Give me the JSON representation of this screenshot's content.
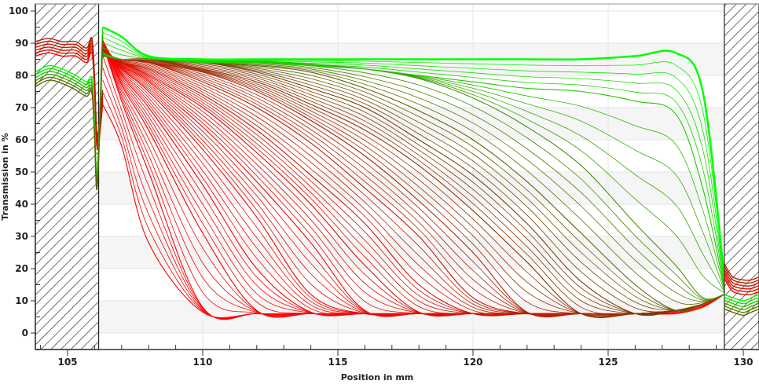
{
  "chart_data": {
    "type": "line",
    "xlabel": "Position in mm",
    "ylabel": "Transmission in %",
    "xlim": [
      103.8,
      130.6
    ],
    "ylim": [
      -5,
      102
    ],
    "xticks": [
      "105",
      "110",
      "115",
      "120",
      "125",
      "130"
    ],
    "yticks": [
      "0",
      "10",
      "20",
      "30",
      "40",
      "50",
      "60",
      "70",
      "80",
      "90",
      "100"
    ],
    "grid": true,
    "alternating_bands": true,
    "excluded_regions": [
      [
        103.8,
        106.15
      ],
      [
        129.3,
        130.6
      ]
    ],
    "color_low": "#ff0000",
    "color_mid": "#7a3a00",
    "color_high": "#00ff00",
    "x": [
      106.3,
      107,
      108,
      110,
      112,
      114,
      116,
      118,
      120,
      122,
      124,
      126,
      127.5,
      128.5,
      129.3
    ],
    "series": [
      {
        "values": [
          71,
          58,
          28,
          6.5,
          6,
          6,
          6,
          6,
          6,
          6,
          6,
          6,
          6,
          8,
          12
        ]
      },
      {
        "values": [
          90,
          72,
          50,
          8,
          6,
          6,
          6,
          6,
          6,
          6,
          6,
          6,
          7,
          9,
          12
        ]
      },
      {
        "values": [
          91,
          77,
          63,
          31,
          7,
          6,
          6,
          6,
          6,
          6,
          6,
          6,
          7,
          9,
          12
        ]
      },
      {
        "values": [
          91,
          80,
          70,
          46,
          20,
          6.5,
          6,
          6,
          6,
          6,
          6,
          6,
          7,
          9,
          12
        ]
      },
      {
        "values": [
          90,
          82,
          75,
          57,
          36,
          12,
          6,
          6,
          6,
          6,
          6,
          6,
          7,
          9,
          12
        ]
      },
      {
        "values": [
          89,
          83,
          78,
          64,
          47,
          28,
          7,
          6,
          6,
          6,
          6,
          6,
          7,
          9,
          12
        ]
      },
      {
        "values": [
          88,
          84,
          80,
          70,
          56,
          40,
          21,
          6.5,
          6,
          6,
          6,
          6,
          7,
          9,
          12
        ]
      },
      {
        "values": [
          87,
          84,
          82,
          74,
          63,
          49,
          34,
          15,
          6,
          6,
          6,
          6,
          7,
          9,
          12
        ]
      },
      {
        "values": [
          87,
          85,
          84,
          78,
          70,
          59,
          45,
          30,
          11,
          6,
          6,
          6,
          7,
          9,
          12
        ]
      },
      {
        "values": [
          86,
          85,
          84,
          81,
          75,
          66,
          55,
          41,
          25,
          6.5,
          6,
          6,
          7,
          9,
          12
        ]
      },
      {
        "values": [
          86,
          85,
          85,
          82,
          78,
          71,
          63,
          52,
          38,
          22,
          6,
          6,
          7,
          9,
          12
        ]
      },
      {
        "values": [
          86,
          85,
          85,
          84,
          81,
          76,
          70,
          60,
          49,
          34,
          16,
          6,
          7,
          9,
          12
        ]
      },
      {
        "values": [
          86,
          85,
          85,
          84,
          83,
          81,
          76,
          69,
          60,
          47,
          31,
          15,
          7,
          9,
          12
        ]
      },
      {
        "values": [
          86,
          85,
          85,
          85,
          84.5,
          83.5,
          82,
          79,
          73,
          64,
          52,
          34,
          21,
          11,
          12
        ]
      },
      {
        "values": [
          87,
          85,
          85,
          84,
          84,
          83,
          82,
          80,
          78,
          76,
          75,
          72,
          68,
          45,
          14
        ]
      },
      {
        "values": [
          95,
          92,
          86,
          85,
          85,
          85,
          85,
          85,
          85,
          85,
          85,
          86,
          87,
          75,
          17
        ]
      }
    ],
    "edge_series": [
      {
        "x": [
          103.8,
          104.3,
          104.8,
          105.3,
          105.7,
          105.9,
          106.0,
          106.1,
          106.3
        ],
        "values": [
          86,
          87,
          86,
          86,
          84,
          87,
          75,
          57,
          71
        ]
      },
      {
        "x": [
          103.8,
          104.3,
          104.8,
          105.3,
          105.7,
          105.9,
          106.0,
          106.1,
          106.3
        ],
        "values": [
          81,
          83,
          82,
          80,
          78,
          79,
          65,
          50,
          95
        ]
      },
      {
        "x": [
          129.3,
          129.6,
          130.0,
          130.3,
          130.6
        ],
        "values": [
          17,
          13,
          12,
          12,
          13
        ]
      },
      {
        "x": [
          129.3,
          129.6,
          130.0,
          130.3,
          130.6
        ],
        "values": [
          12,
          11,
          10,
          11,
          12
        ]
      }
    ]
  }
}
